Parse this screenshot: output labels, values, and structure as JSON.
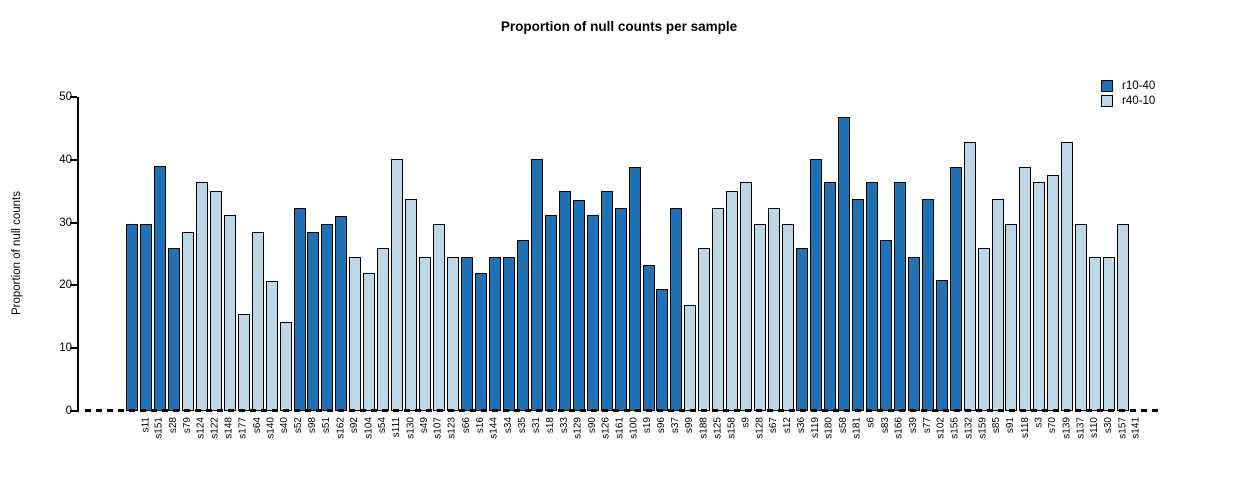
{
  "chart_data": {
    "type": "bar",
    "title": "Proportion of null counts per sample",
    "xlabel": "",
    "ylabel": "Proportion of null counts",
    "ylim": [
      0,
      50
    ],
    "yticks": [
      0,
      10,
      20,
      30,
      40,
      50
    ],
    "grid": false,
    "legend_position": "top-right",
    "legend": [
      {
        "name": "r10-40",
        "color": "#2171B5"
      },
      {
        "name": "r40-10",
        "color": "#BDD7E7"
      }
    ],
    "bars": [
      {
        "label": "s11",
        "value": 29.8,
        "series": "r10-40"
      },
      {
        "label": "s151",
        "value": 29.8,
        "series": "r10-40"
      },
      {
        "label": "s28",
        "value": 39.0,
        "series": "r10-40"
      },
      {
        "label": "s79",
        "value": 26.0,
        "series": "r10-40"
      },
      {
        "label": "s124",
        "value": 28.5,
        "series": "r40-10"
      },
      {
        "label": "s122",
        "value": 36.4,
        "series": "r40-10"
      },
      {
        "label": "s148",
        "value": 35.0,
        "series": "r40-10"
      },
      {
        "label": "s177",
        "value": 31.2,
        "series": "r40-10"
      },
      {
        "label": "s64",
        "value": 15.5,
        "series": "r40-10"
      },
      {
        "label": "s140",
        "value": 28.5,
        "series": "r40-10"
      },
      {
        "label": "s40",
        "value": 20.7,
        "series": "r40-10"
      },
      {
        "label": "s52",
        "value": 14.2,
        "series": "r40-10"
      },
      {
        "label": "s98",
        "value": 32.4,
        "series": "r10-40"
      },
      {
        "label": "s51",
        "value": 28.5,
        "series": "r10-40"
      },
      {
        "label": "s162",
        "value": 29.8,
        "series": "r10-40"
      },
      {
        "label": "s92",
        "value": 31.1,
        "series": "r10-40"
      },
      {
        "label": "s104",
        "value": 24.5,
        "series": "r40-10"
      },
      {
        "label": "s54",
        "value": 22.0,
        "series": "r40-10"
      },
      {
        "label": "s111",
        "value": 26.0,
        "series": "r40-10"
      },
      {
        "label": "s130",
        "value": 40.2,
        "series": "r40-10"
      },
      {
        "label": "s49",
        "value": 33.7,
        "series": "r40-10"
      },
      {
        "label": "s107",
        "value": 24.5,
        "series": "r40-10"
      },
      {
        "label": "s123",
        "value": 29.8,
        "series": "r40-10"
      },
      {
        "label": "s66",
        "value": 24.5,
        "series": "r40-10"
      },
      {
        "label": "s16",
        "value": 24.5,
        "series": "r10-40"
      },
      {
        "label": "s144",
        "value": 22.0,
        "series": "r10-40"
      },
      {
        "label": "s34",
        "value": 24.5,
        "series": "r10-40"
      },
      {
        "label": "s35",
        "value": 24.5,
        "series": "r10-40"
      },
      {
        "label": "s31",
        "value": 27.2,
        "series": "r10-40"
      },
      {
        "label": "s18",
        "value": 40.2,
        "series": "r10-40"
      },
      {
        "label": "s33",
        "value": 31.2,
        "series": "r10-40"
      },
      {
        "label": "s129",
        "value": 35.0,
        "series": "r10-40"
      },
      {
        "label": "s90",
        "value": 33.6,
        "series": "r10-40"
      },
      {
        "label": "s126",
        "value": 31.2,
        "series": "r10-40"
      },
      {
        "label": "s161",
        "value": 35.0,
        "series": "r10-40"
      },
      {
        "label": "s100",
        "value": 32.4,
        "series": "r10-40"
      },
      {
        "label": "s19",
        "value": 38.9,
        "series": "r10-40"
      },
      {
        "label": "s96",
        "value": 23.3,
        "series": "r10-40"
      },
      {
        "label": "s37",
        "value": 19.5,
        "series": "r10-40"
      },
      {
        "label": "s99",
        "value": 32.4,
        "series": "r10-40"
      },
      {
        "label": "s188",
        "value": 16.8,
        "series": "r40-10"
      },
      {
        "label": "s125",
        "value": 26.0,
        "series": "r40-10"
      },
      {
        "label": "s158",
        "value": 32.4,
        "series": "r40-10"
      },
      {
        "label": "s9",
        "value": 35.0,
        "series": "r40-10"
      },
      {
        "label": "s128",
        "value": 36.4,
        "series": "r40-10"
      },
      {
        "label": "s67",
        "value": 29.8,
        "series": "r40-10"
      },
      {
        "label": "s12",
        "value": 32.4,
        "series": "r40-10"
      },
      {
        "label": "s36",
        "value": 29.8,
        "series": "r40-10"
      },
      {
        "label": "s119",
        "value": 26.0,
        "series": "r10-40"
      },
      {
        "label": "s180",
        "value": 40.2,
        "series": "r10-40"
      },
      {
        "label": "s58",
        "value": 36.4,
        "series": "r10-40"
      },
      {
        "label": "s181",
        "value": 46.8,
        "series": "r10-40"
      },
      {
        "label": "s6",
        "value": 33.7,
        "series": "r10-40"
      },
      {
        "label": "s83",
        "value": 36.4,
        "series": "r10-40"
      },
      {
        "label": "s166",
        "value": 27.2,
        "series": "r10-40"
      },
      {
        "label": "s39",
        "value": 36.4,
        "series": "r10-40"
      },
      {
        "label": "s77",
        "value": 24.5,
        "series": "r10-40"
      },
      {
        "label": "s102",
        "value": 33.7,
        "series": "r10-40"
      },
      {
        "label": "s155",
        "value": 20.8,
        "series": "r10-40"
      },
      {
        "label": "s132",
        "value": 38.9,
        "series": "r10-40"
      },
      {
        "label": "s159",
        "value": 42.8,
        "series": "r40-10"
      },
      {
        "label": "s85",
        "value": 26.0,
        "series": "r40-10"
      },
      {
        "label": "s91",
        "value": 33.7,
        "series": "r40-10"
      },
      {
        "label": "s118",
        "value": 29.8,
        "series": "r40-10"
      },
      {
        "label": "s3",
        "value": 38.9,
        "series": "r40-10"
      },
      {
        "label": "s70",
        "value": 36.4,
        "series": "r40-10"
      },
      {
        "label": "s139",
        "value": 37.6,
        "series": "r40-10"
      },
      {
        "label": "s137",
        "value": 42.8,
        "series": "r40-10"
      },
      {
        "label": "s110",
        "value": 29.8,
        "series": "r40-10"
      },
      {
        "label": "s30",
        "value": 24.5,
        "series": "r40-10"
      },
      {
        "label": "s157",
        "value": 24.5,
        "series": "r40-10"
      },
      {
        "label": "s141",
        "value": 29.8,
        "series": "r40-10"
      }
    ]
  }
}
